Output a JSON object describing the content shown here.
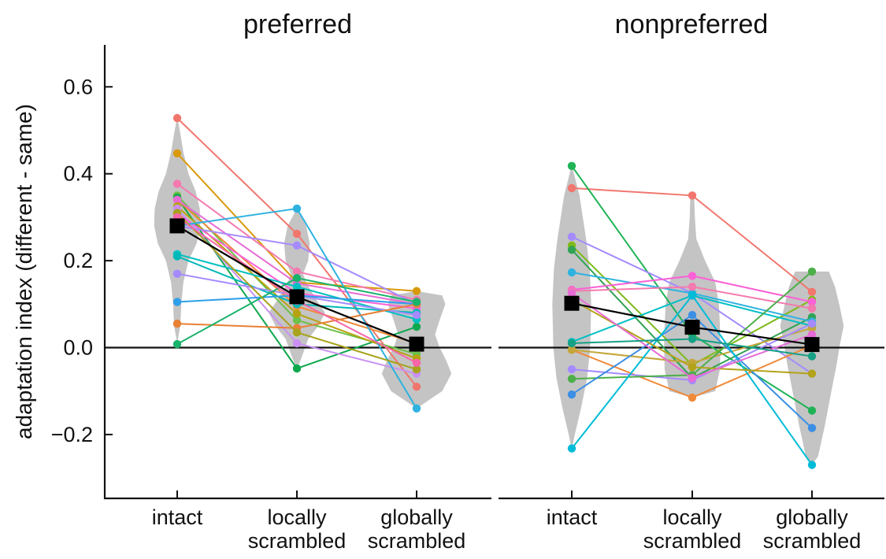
{
  "chart_data": [
    {
      "type": "line",
      "title": "preferred",
      "ylabel": "adaptation index (different - same)",
      "ylim": [
        -0.3,
        0.7
      ],
      "yticks": [
        "0.6",
        "0.4",
        "0.2",
        "0.0",
        "−0.2"
      ],
      "ytick_values": [
        0.6,
        0.4,
        0.2,
        0.0,
        -0.2
      ],
      "categories": [
        {
          "lines": [
            "intact"
          ]
        },
        {
          "lines": [
            "locally",
            "scrambled"
          ]
        },
        {
          "lines": [
            "globally",
            "scrambled"
          ]
        }
      ],
      "reference_line": 0.0,
      "violins": [
        {
          "profile": [
            [
              0.53,
              0.0
            ],
            [
              0.5,
              0.05
            ],
            [
              0.45,
              0.12
            ],
            [
              0.4,
              0.22
            ],
            [
              0.36,
              0.36
            ],
            [
              0.32,
              0.44
            ],
            [
              0.28,
              0.45
            ],
            [
              0.24,
              0.38
            ],
            [
              0.2,
              0.22
            ],
            [
              0.15,
              0.12
            ],
            [
              0.1,
              0.08
            ],
            [
              0.05,
              0.06
            ],
            [
              0.01,
              0.0
            ]
          ]
        },
        {
          "profile": [
            [
              0.32,
              0.0
            ],
            [
              0.28,
              0.18
            ],
            [
              0.24,
              0.25
            ],
            [
              0.2,
              0.22
            ],
            [
              0.17,
              0.12
            ],
            [
              0.15,
              0.18
            ],
            [
              0.11,
              0.38
            ],
            [
              0.08,
              0.55
            ],
            [
              0.05,
              0.42
            ],
            [
              0.02,
              0.22
            ],
            [
              -0.02,
              0.1
            ],
            [
              -0.05,
              0.0
            ]
          ]
        },
        {
          "profile": [
            [
              0.13,
              0.0
            ],
            [
              0.12,
              0.5
            ],
            [
              0.1,
              0.56
            ],
            [
              0.06,
              0.44
            ],
            [
              0.03,
              0.36
            ],
            [
              0.0,
              0.45
            ],
            [
              -0.03,
              0.58
            ],
            [
              -0.06,
              0.68
            ],
            [
              -0.1,
              0.5
            ],
            [
              -0.14,
              0.0
            ]
          ]
        }
      ],
      "series": [
        {
          "color": "#f1766d",
          "values": [
            0.528,
            0.262,
            -0.09
          ]
        },
        {
          "color": "#d89a0c",
          "values": [
            0.447,
            0.15,
            0.13
          ]
        },
        {
          "color": "#f47ab0",
          "values": [
            0.377,
            0.175,
            0.11
          ]
        },
        {
          "color": "#6cc24a",
          "values": [
            0.35,
            0.063,
            -0.015
          ]
        },
        {
          "color": "#0fa84f",
          "values": [
            0.345,
            -0.048,
            0.048
          ]
        },
        {
          "color": "#f08a3a",
          "values": [
            0.34,
            0.095,
            0.01
          ]
        },
        {
          "color": "#e76bd6",
          "values": [
            0.34,
            0.148,
            0.1
          ]
        },
        {
          "color": "#b6a30f",
          "values": [
            0.325,
            0.078,
            -0.025
          ]
        },
        {
          "color": "#c990f2",
          "values": [
            0.32,
            0.01,
            -0.06
          ]
        },
        {
          "color": "#fb61d7",
          "values": [
            0.308,
            0.125,
            0.09
          ]
        },
        {
          "color": "#a58afe",
          "values": [
            0.28,
            0.235,
            0.1
          ]
        },
        {
          "color": "#2eb2e0",
          "values": [
            0.28,
            0.32,
            -0.14
          ]
        },
        {
          "color": "#00c0c0",
          "values": [
            0.215,
            0.14,
            0.065
          ]
        },
        {
          "color": "#00b8b8",
          "values": [
            0.21,
            0.1,
            0.08
          ]
        },
        {
          "color": "#a58afe",
          "values": [
            0.17,
            0.12,
            0.075
          ]
        },
        {
          "color": "#2e9fea",
          "values": [
            0.105,
            0.12,
            0.1
          ]
        },
        {
          "color": "#e88035",
          "values": [
            0.055,
            0.045,
            0.1
          ]
        },
        {
          "color": "#19b36b",
          "values": [
            0.008,
            0.16,
            0.105
          ]
        },
        {
          "color": "#a8a21c",
          "values": [
            0.31,
            0.035,
            -0.05
          ]
        },
        {
          "color": "#f766a8",
          "values": [
            0.3,
            0.108,
            -0.035
          ]
        }
      ],
      "mean": {
        "values": [
          0.28,
          0.117,
          0.008
        ]
      }
    },
    {
      "type": "line",
      "title": "nonpreferred",
      "ylim": [
        -0.3,
        0.7
      ],
      "categories": [
        {
          "lines": [
            "intact"
          ]
        },
        {
          "lines": [
            "locally",
            "scrambled"
          ]
        },
        {
          "lines": [
            "globally",
            "scrambled"
          ]
        }
      ],
      "reference_line": 0.0,
      "violins": [
        {
          "profile": [
            [
              0.42,
              0.0
            ],
            [
              0.35,
              0.15
            ],
            [
              0.25,
              0.28
            ],
            [
              0.18,
              0.35
            ],
            [
              0.1,
              0.38
            ],
            [
              0.0,
              0.36
            ],
            [
              -0.07,
              0.3
            ],
            [
              -0.14,
              0.18
            ],
            [
              -0.2,
              0.06
            ],
            [
              -0.235,
              0.0
            ]
          ]
        },
        {
          "profile": [
            [
              0.355,
              0.0
            ],
            [
              0.34,
              0.04
            ],
            [
              0.3,
              0.05
            ],
            [
              0.25,
              0.08
            ],
            [
              0.2,
              0.25
            ],
            [
              0.15,
              0.45
            ],
            [
              0.1,
              0.52
            ],
            [
              0.05,
              0.54
            ],
            [
              0.0,
              0.55
            ],
            [
              -0.05,
              0.54
            ],
            [
              -0.1,
              0.45
            ],
            [
              -0.115,
              0.0
            ]
          ]
        },
        {
          "profile": [
            [
              0.175,
              0.0
            ],
            [
              0.175,
              0.33
            ],
            [
              0.14,
              0.45
            ],
            [
              0.09,
              0.55
            ],
            [
              0.05,
              0.62
            ],
            [
              0.01,
              0.55
            ],
            [
              -0.04,
              0.48
            ],
            [
              -0.1,
              0.38
            ],
            [
              -0.18,
              0.25
            ],
            [
              -0.25,
              0.12
            ],
            [
              -0.27,
              0.0
            ]
          ]
        }
      ],
      "series": [
        {
          "color": "#f1766d",
          "values": [
            0.367,
            0.35,
            0.128
          ]
        },
        {
          "color": "#1fb356",
          "values": [
            0.418,
            0.03,
            -0.145
          ]
        },
        {
          "color": "#a58afe",
          "values": [
            0.255,
            0.125,
            -0.06
          ]
        },
        {
          "color": "#7fba1a",
          "values": [
            0.235,
            -0.04,
            0.11
          ]
        },
        {
          "color": "#31a354",
          "values": [
            0.225,
            -0.07,
            0.07
          ]
        },
        {
          "color": "#2eb2e0",
          "values": [
            0.173,
            0.125,
            0.06
          ]
        },
        {
          "color": "#fb61d7",
          "values": [
            0.133,
            0.165,
            0.105
          ]
        },
        {
          "color": "#f47ab0",
          "values": [
            0.13,
            0.14,
            0.09
          ]
        },
        {
          "color": "#00bfc4",
          "values": [
            0.013,
            0.12,
            0.05
          ]
        },
        {
          "color": "#f08a3a",
          "values": [
            -0.005,
            -0.115,
            0.005
          ]
        },
        {
          "color": "#c3a63a",
          "values": [
            -0.005,
            -0.035,
            0.045
          ]
        },
        {
          "color": "#a58afe",
          "values": [
            -0.05,
            -0.075,
            0.055
          ]
        },
        {
          "color": "#4daf4a",
          "values": [
            -0.072,
            -0.063,
            0.175
          ]
        },
        {
          "color": "#3b8fe4",
          "values": [
            -0.108,
            0.075,
            -0.185
          ]
        },
        {
          "color": "#00bcd8",
          "values": [
            -0.232,
            0.12,
            -0.27
          ]
        },
        {
          "color": "#b3a31a",
          "values": [
            0.11,
            -0.045,
            -0.06
          ]
        },
        {
          "color": "#e76bd6",
          "values": [
            0.125,
            -0.07,
            0.03
          ]
        },
        {
          "color": "#16a085",
          "values": [
            0.01,
            0.02,
            -0.02
          ]
        }
      ],
      "mean": {
        "values": [
          0.102,
          0.047,
          0.007
        ]
      }
    }
  ]
}
